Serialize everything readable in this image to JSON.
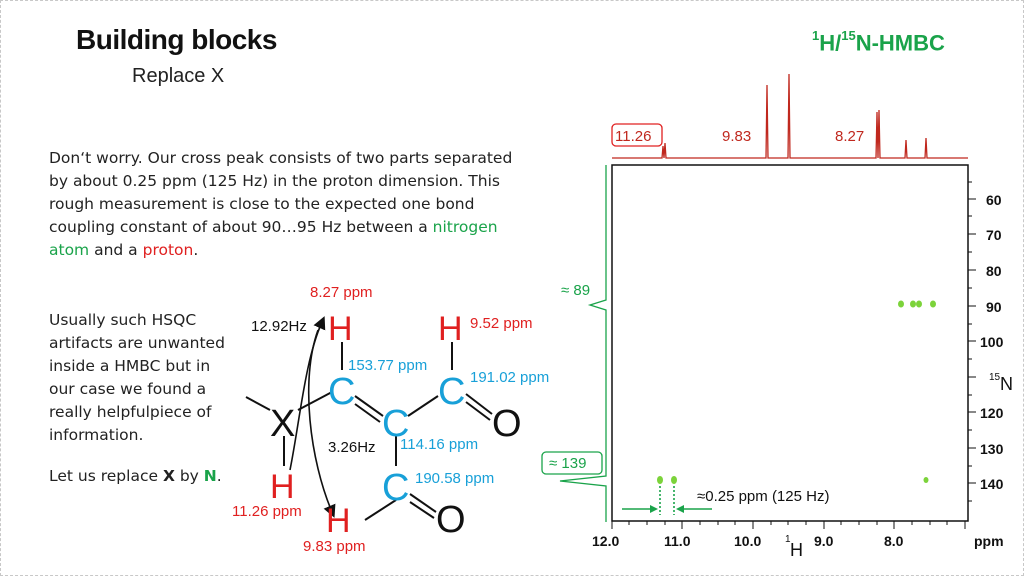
{
  "slide": {
    "title": "Building blocks",
    "subtitle": "Replace X",
    "hmbc_sup1": "1",
    "hmbc_h": "H/",
    "hmbc_sup2": "15",
    "hmbc_n": "N-HMBC",
    "para1": {
      "line1": "Don‘t worry. Our cross peak consists of two parts separated",
      "line2": "by about 0.25 ppm (125 Hz) in the proton dimension. This",
      "line3": "rough measurement is close to the expected one bond",
      "line4a": "coupling constant of about 90…95 Hz between a ",
      "line4b": "nitrogen",
      "line5a": "atom",
      "line5b": " and a ",
      "line5c": "proton",
      "line5d": "."
    },
    "para2": {
      "line1": "Usually such HSQC",
      "line2": "artifacts are unwanted",
      "line3": "inside a HMBC but in",
      "line4": "our case we found a",
      "line5": "really helpfulpiece of",
      "line6": "information."
    },
    "para3": {
      "pre": "Let us replace ",
      "x": "X",
      "mid": " by ",
      "n": "N",
      "post": "."
    }
  },
  "molecule": {
    "atoms": {
      "h_top_left": "H",
      "h_top_right": "H",
      "c_left": "C",
      "c_right": "C",
      "c_center": "C",
      "c_bottom": "C",
      "o_right": "O",
      "o_bottom": "O",
      "x": "X",
      "h_x": "H",
      "h_bottom": "H"
    },
    "labels": {
      "h827": "8.27 ppm",
      "h952": "9.52 ppm",
      "j1292": "12.92Hz",
      "c15377": "153.77 ppm",
      "c19102": "191.02 ppm",
      "c11416": "114.16 ppm",
      "j326": "3.26Hz",
      "c19058": "190.58 ppm",
      "h1126": "11.26 ppm",
      "h983": "9.83 ppm"
    }
  },
  "spectrum": {
    "top_labels": {
      "p1126": "11.26",
      "p983": "9.83",
      "p827": "8.27"
    },
    "left_labels": {
      "n89": "≈ 89",
      "n139": "≈ 139"
    },
    "split_label": "≈0.25 ppm (125 Hz)",
    "x_axis": {
      "ticks": [
        "12.0",
        "11.0",
        "10.0",
        "9.0",
        "8.0"
      ],
      "unit": "ppm",
      "nucleus_sup": "1",
      "nucleus": "H"
    },
    "y_axis": {
      "ticks": [
        "60",
        "70",
        "80",
        "90",
        "100",
        "120",
        "130",
        "140"
      ],
      "nucleus_sup": "15",
      "nucleus": "N"
    },
    "colors": {
      "proton_trace": "#c0281e",
      "nitrogen_trace": "#1aa34a",
      "peaks": "#7cd33a"
    }
  }
}
